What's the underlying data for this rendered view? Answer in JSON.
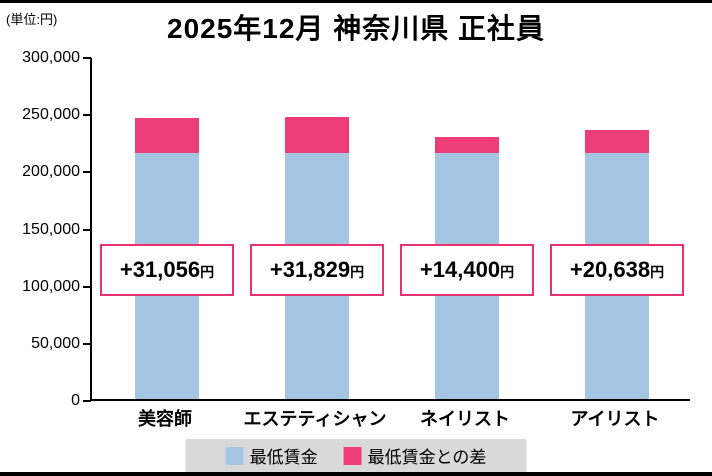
{
  "page": {
    "unit_label": "(単位:円)",
    "title": "2025年12月 神奈川県 正社員"
  },
  "chart_data": {
    "type": "bar",
    "subtype": "stacked",
    "title": "2025年12月 神奈川県 正社員",
    "unit": "円",
    "categories": [
      "美容師",
      "エステティシャン",
      "ネイリスト",
      "アイリスト"
    ],
    "series": [
      {
        "name": "最低賃金",
        "color": "#a5c6e2",
        "values": [
          215000,
          215000,
          215000,
          215000
        ]
      },
      {
        "name": "最低賃金との差",
        "color": "#ee3e7a",
        "values": [
          31056,
          31829,
          14400,
          20638
        ]
      }
    ],
    "bar_labels": [
      {
        "amount": "+31,056",
        "suffix": "円"
      },
      {
        "amount": "+31,829",
        "suffix": "円"
      },
      {
        "amount": "+14,400",
        "suffix": "円"
      },
      {
        "amount": "+20,638",
        "suffix": "円"
      }
    ],
    "ylim": [
      0,
      300000
    ],
    "ytick_interval": 50000,
    "yticks": [
      "300,000",
      "250,000",
      "200,000",
      "150,000",
      "100,000",
      "50,000",
      "0"
    ],
    "grid": "off",
    "legend_position": "bottom",
    "legend": [
      {
        "label": "最低賃金",
        "color": "#a5c6e2"
      },
      {
        "label": "最低賃金との差",
        "color": "#ee3e7a"
      }
    ]
  }
}
